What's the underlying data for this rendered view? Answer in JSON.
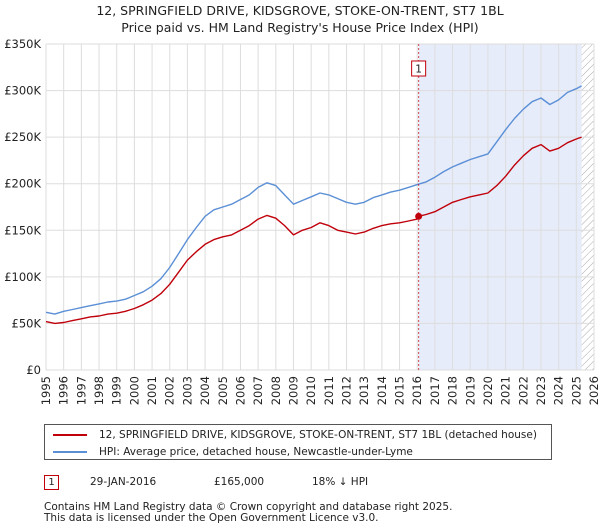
{
  "title_line1": "12, SPRINGFIELD DRIVE, KIDSGROVE, STOKE-ON-TRENT, ST7 1BL",
  "title_line2": "Price paid vs. HM Land Registry's House Price Index (HPI)",
  "colors": {
    "property": "#c0000b",
    "hpi": "#5b8fd6",
    "shade": "#e6ecfa",
    "grid": "#dddddd"
  },
  "legend": {
    "property_label": "12, SPRINGFIELD DRIVE, KIDSGROVE, STOKE-ON-TRENT, ST7 1BL (detached house)",
    "hpi_label": "HPI: Average price, detached house, Newcastle-under-Lyme"
  },
  "sale": {
    "number": "1",
    "date": "29-JAN-2016",
    "price": "£165,000",
    "hpi_diff": "18% ↓ HPI"
  },
  "footer_line1": "Contains HM Land Registry data © Crown copyright and database right 2025.",
  "footer_line2": "This data is licensed under the Open Government Licence v3.0.",
  "chart_data": {
    "type": "line",
    "title": "12, SPRINGFIELD DRIVE, KIDSGROVE, STOKE-ON-TRENT, ST7 1BL — Price paid vs. HM Land Registry's House Price Index (HPI)",
    "xlabel": "",
    "ylabel": "",
    "xlim": [
      1995,
      2026
    ],
    "ylim": [
      0,
      350000
    ],
    "y_ticks": [
      0,
      50000,
      100000,
      150000,
      200000,
      250000,
      300000,
      350000
    ],
    "y_tick_labels": [
      "£0",
      "£50K",
      "£100K",
      "£150K",
      "£200K",
      "£250K",
      "£300K",
      "£350K"
    ],
    "x_ticks": [
      1995,
      1996,
      1997,
      1998,
      1999,
      2000,
      2001,
      2002,
      2003,
      2004,
      2005,
      2006,
      2007,
      2008,
      2009,
      2010,
      2011,
      2012,
      2013,
      2014,
      2015,
      2016,
      2017,
      2018,
      2019,
      2020,
      2021,
      2022,
      2023,
      2024,
      2025,
      2026
    ],
    "x_tick_labels": [
      "1995",
      "1996",
      "1997",
      "1998",
      "1999",
      "2000",
      "2001",
      "2002",
      "2003",
      "2004",
      "2005",
      "2006",
      "2007",
      "2008",
      "2009",
      "2010",
      "2011",
      "2012",
      "2013",
      "2014",
      "2015",
      "2016",
      "2017",
      "2018",
      "2019",
      "2020",
      "2021",
      "2022",
      "2023",
      "2024",
      "2025",
      "2026"
    ],
    "shaded_region": [
      2016.08,
      2025.3
    ],
    "future_hatch_from": 2025.3,
    "grid": true,
    "legend_position": "below",
    "series": [
      {
        "name": "12, SPRINGFIELD DRIVE, KIDSGROVE, STOKE-ON-TRENT, ST7 1BL (detached house)",
        "color": "#c0000b",
        "x": [
          1995,
          1995.5,
          1996,
          1996.5,
          1997,
          1997.5,
          1998,
          1998.5,
          1999,
          1999.5,
          2000,
          2000.5,
          2001,
          2001.5,
          2002,
          2002.5,
          2003,
          2003.5,
          2004,
          2004.5,
          2005,
          2005.5,
          2006,
          2006.5,
          2007,
          2007.5,
          2008,
          2008.5,
          2009,
          2009.5,
          2010,
          2010.5,
          2011,
          2011.5,
          2012,
          2012.5,
          2013,
          2013.5,
          2014,
          2014.5,
          2015,
          2015.5,
          2016,
          2016.08,
          2016.5,
          2017,
          2017.5,
          2018,
          2018.5,
          2019,
          2019.5,
          2020,
          2020.5,
          2021,
          2021.5,
          2022,
          2022.5,
          2023,
          2023.5,
          2024,
          2024.5,
          2025,
          2025.3
        ],
        "y": [
          52000,
          50000,
          51000,
          53000,
          55000,
          57000,
          58000,
          60000,
          61000,
          63000,
          66000,
          70000,
          75000,
          82000,
          92000,
          105000,
          118000,
          127000,
          135000,
          140000,
          143000,
          145000,
          150000,
          155000,
          162000,
          166000,
          163000,
          155000,
          145000,
          150000,
          153000,
          158000,
          155000,
          150000,
          148000,
          146000,
          148000,
          152000,
          155000,
          157000,
          158000,
          160000,
          162000,
          165000,
          167000,
          170000,
          175000,
          180000,
          183000,
          186000,
          188000,
          190000,
          198000,
          208000,
          220000,
          230000,
          238000,
          242000,
          235000,
          238000,
          244000,
          248000,
          250000
        ]
      },
      {
        "name": "HPI: Average price, detached house, Newcastle-under-Lyme",
        "color": "#5b8fd6",
        "x": [
          1995,
          1995.5,
          1996,
          1996.5,
          1997,
          1997.5,
          1998,
          1998.5,
          1999,
          1999.5,
          2000,
          2000.5,
          2001,
          2001.5,
          2002,
          2002.5,
          2003,
          2003.5,
          2004,
          2004.5,
          2005,
          2005.5,
          2006,
          2006.5,
          2007,
          2007.5,
          2008,
          2008.5,
          2009,
          2009.5,
          2010,
          2010.5,
          2011,
          2011.5,
          2012,
          2012.5,
          2013,
          2013.5,
          2014,
          2014.5,
          2015,
          2015.5,
          2016,
          2016.5,
          2017,
          2017.5,
          2018,
          2018.5,
          2019,
          2019.5,
          2020,
          2020.5,
          2021,
          2021.5,
          2022,
          2022.5,
          2023,
          2023.5,
          2024,
          2024.5,
          2025,
          2025.3
        ],
        "y": [
          62000,
          60000,
          63000,
          65000,
          67000,
          69000,
          71000,
          73000,
          74000,
          76000,
          80000,
          84000,
          90000,
          98000,
          110000,
          125000,
          140000,
          153000,
          165000,
          172000,
          175000,
          178000,
          183000,
          188000,
          196000,
          201000,
          198000,
          188000,
          178000,
          182000,
          186000,
          190000,
          188000,
          184000,
          180000,
          178000,
          180000,
          185000,
          188000,
          191000,
          193000,
          196000,
          199000,
          202000,
          207000,
          213000,
          218000,
          222000,
          226000,
          229000,
          232000,
          245000,
          258000,
          270000,
          280000,
          288000,
          292000,
          285000,
          290000,
          298000,
          302000,
          305000
        ]
      }
    ],
    "annotations": [
      {
        "label": "1",
        "x": 2016.08,
        "y": 165000
      }
    ]
  }
}
